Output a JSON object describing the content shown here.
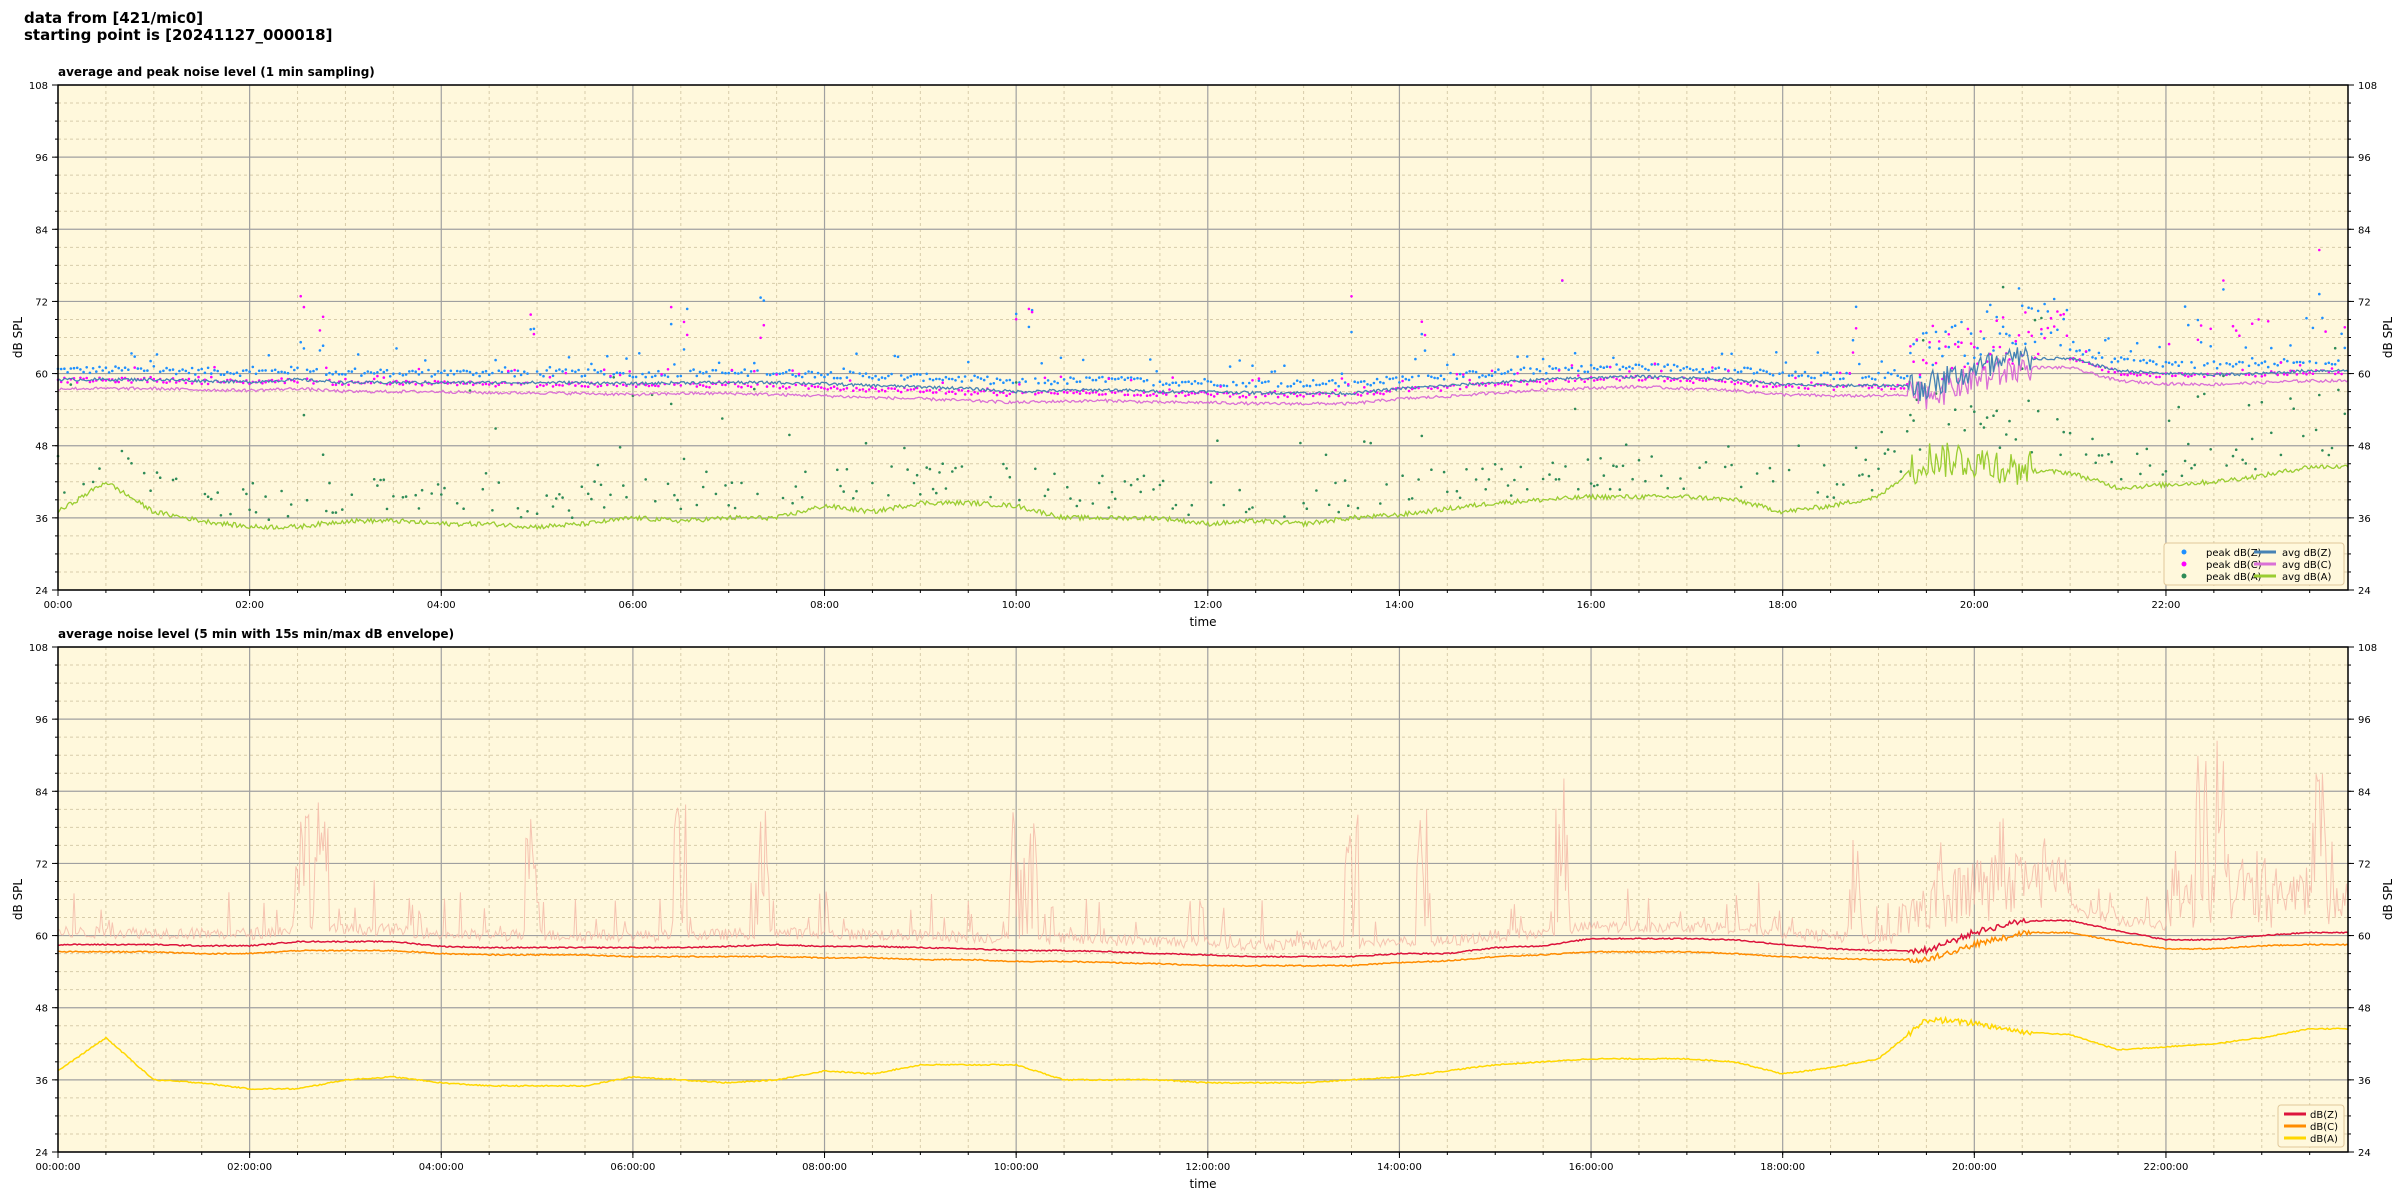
{
  "title_lines": [
    "data from [421/mic0]",
    "starting point is [20241127_000018]"
  ],
  "colors": {
    "plot_bg": "#fff8dc",
    "peakZ": "#1e90ff",
    "peakC": "#ff00ff",
    "peakA": "#2e8b57",
    "avgZ": "#4682b4",
    "avgC": "#da70d6",
    "avgA": "#9acd32",
    "dbZ": "#dc143c",
    "dbC": "#ff8c00",
    "dbA": "#ffd700",
    "envelope": "#f4b6a6"
  },
  "chart_data": [
    {
      "type": "line+scatter",
      "title": "average and peak noise level (1 min sampling)",
      "xlabel": "time",
      "ylabel": "dB SPL",
      "xlim_hours": [
        0,
        23.9
      ],
      "ylim": [
        24,
        108
      ],
      "yticks": [
        24,
        36,
        48,
        60,
        72,
        84,
        96,
        108
      ],
      "xtick_labels": [
        "00:00",
        "02:00",
        "04:00",
        "06:00",
        "08:00",
        "10:00",
        "12:00",
        "14:00",
        "16:00",
        "18:00",
        "20:00",
        "22:00"
      ],
      "grid": true,
      "legend_placement": "lower right",
      "legend": [
        "peak dB(Z)",
        "peak dB(C)",
        "peak dB(A)",
        "avg dB(Z)",
        "avg dB(C)",
        "avg dB(A)"
      ],
      "x_hours_step": 0.5,
      "avgZ": [
        59,
        59,
        59,
        58.8,
        58.6,
        59,
        58.5,
        58.5,
        58.5,
        58.5,
        58.5,
        58.5,
        58.3,
        58.5,
        58.5,
        58.5,
        58.3,
        58,
        57.8,
        57.5,
        57,
        57.2,
        57.3,
        57,
        57,
        56.8,
        56.8,
        56.7,
        57.5,
        58,
        58.5,
        59,
        59.3,
        59.5,
        59.3,
        59,
        58.2,
        58,
        58,
        58,
        60.5,
        62.5,
        62.5,
        60.5,
        60,
        59.8,
        60,
        60.5
      ],
      "avgC": [
        57.5,
        57.5,
        57.5,
        57.3,
        57.2,
        57.5,
        57,
        57,
        57,
        56.8,
        56.8,
        56.7,
        56.5,
        56.7,
        56.7,
        56.5,
        56.3,
        56,
        55.8,
        55.5,
        55.2,
        55.4,
        55.5,
        55.2,
        55.2,
        55,
        55,
        55,
        55.8,
        56.2,
        56.8,
        57.3,
        57.6,
        57.8,
        57.5,
        57.2,
        56.5,
        56.3,
        56.3,
        56.5,
        59,
        61,
        61,
        58.8,
        58.3,
        58.2,
        58.5,
        58.8
      ],
      "avgA": [
        37,
        42,
        37,
        35.5,
        34.5,
        34.5,
        35.5,
        35.5,
        35,
        35,
        34.5,
        35,
        36,
        35.5,
        36,
        36,
        38,
        37,
        38.5,
        38.5,
        38,
        36,
        36,
        36,
        35,
        35.5,
        35,
        36,
        36.5,
        37.5,
        38.5,
        39,
        39.5,
        39.5,
        39.5,
        39,
        37,
        38,
        39.5,
        46,
        45.5,
        44,
        43.5,
        41,
        41.5,
        42,
        43,
        44.5
      ],
      "events": [
        [
          2.55,
          68,
          56
        ],
        [
          2.75,
          63,
          45
        ],
        [
          4.95,
          65,
          55
        ],
        [
          6.4,
          64,
          53
        ],
        [
          6.55,
          64,
          50
        ],
        [
          7.35,
          70,
          58
        ],
        [
          10.0,
          66,
          52
        ],
        [
          10.15,
          68,
          54
        ],
        [
          13.5,
          64,
          47
        ],
        [
          14.25,
          66,
          50
        ],
        [
          15.7,
          69,
          55
        ],
        [
          18.75,
          68,
          52
        ],
        [
          22.35,
          67,
          55
        ],
        [
          22.6,
          67,
          52
        ],
        [
          23.6,
          72,
          52
        ]
      ]
    },
    {
      "type": "line",
      "title": "average noise level (5 min with 15s min/max dB envelope)",
      "xlabel": "time",
      "ylabel": "dB SPL",
      "xlim_hours": [
        0,
        23.9
      ],
      "ylim": [
        24,
        108
      ],
      "yticks": [
        24,
        36,
        48,
        60,
        72,
        84,
        96,
        108
      ],
      "xtick_labels": [
        "00:00:00",
        "02:00:00",
        "04:00:00",
        "06:00:00",
        "08:00:00",
        "10:00:00",
        "12:00:00",
        "14:00:00",
        "16:00:00",
        "18:00:00",
        "20:00:00",
        "22:00:00"
      ],
      "grid": true,
      "legend_placement": "lower right",
      "legend": [
        "dB(Z)",
        "dB(C)",
        "dB(A)"
      ],
      "x_hours_step": 0.5,
      "dbZ": [
        58.5,
        58.5,
        58.5,
        58.3,
        58.3,
        59,
        59,
        59,
        58.2,
        58,
        58,
        58,
        58,
        58,
        58.2,
        58.5,
        58.2,
        58.2,
        58,
        57.8,
        57.5,
        57.5,
        57.3,
        57,
        56.8,
        56.5,
        56.5,
        56.5,
        57,
        57,
        58,
        58.3,
        59.5,
        59.5,
        59.5,
        59.3,
        58.5,
        57.8,
        57.5,
        57.5,
        60.5,
        62.5,
        62.5,
        60.8,
        59.3,
        59.3,
        60,
        60.5
      ],
      "dbC": [
        57.3,
        57.3,
        57.3,
        57,
        57,
        57.5,
        57.5,
        57.5,
        57,
        56.8,
        56.8,
        56.8,
        56.5,
        56.5,
        56.5,
        56.5,
        56.3,
        56.3,
        56,
        56,
        55.7,
        55.7,
        55.5,
        55.3,
        55,
        55,
        55,
        55,
        55.5,
        55.8,
        56.5,
        56.8,
        57.3,
        57.3,
        57.3,
        57,
        56.5,
        56.2,
        56,
        56,
        58.5,
        60.5,
        60.5,
        59,
        57.8,
        57.8,
        58.3,
        58.5
      ],
      "dbA": [
        37.5,
        43,
        36,
        35.5,
        34.5,
        34.5,
        36,
        36.5,
        35.5,
        35,
        35,
        35,
        36.5,
        36,
        35.5,
        36,
        37.5,
        37,
        38.5,
        38.5,
        38.5,
        36,
        36,
        36,
        35.5,
        35.5,
        35.5,
        36,
        36.5,
        37.5,
        38.5,
        39,
        39.5,
        39.5,
        39.5,
        39,
        37,
        38,
        39.5,
        46,
        45.5,
        44,
        43.5,
        41,
        41.5,
        42,
        43,
        44.5
      ],
      "events": [
        [
          2.55,
          62,
          39
        ],
        [
          2.75,
          61,
          41
        ],
        [
          4.95,
          60,
          40
        ],
        [
          6.5,
          60,
          40
        ],
        [
          7.35,
          62,
          44
        ],
        [
          10.0,
          60,
          40
        ],
        [
          10.15,
          60,
          39
        ],
        [
          13.5,
          58,
          40
        ],
        [
          14.25,
          64,
          47
        ],
        [
          15.7,
          61,
          42
        ],
        [
          18.75,
          60,
          42
        ],
        [
          22.35,
          62,
          45
        ],
        [
          22.6,
          64,
          47
        ],
        [
          23.6,
          63,
          49
        ]
      ]
    }
  ]
}
